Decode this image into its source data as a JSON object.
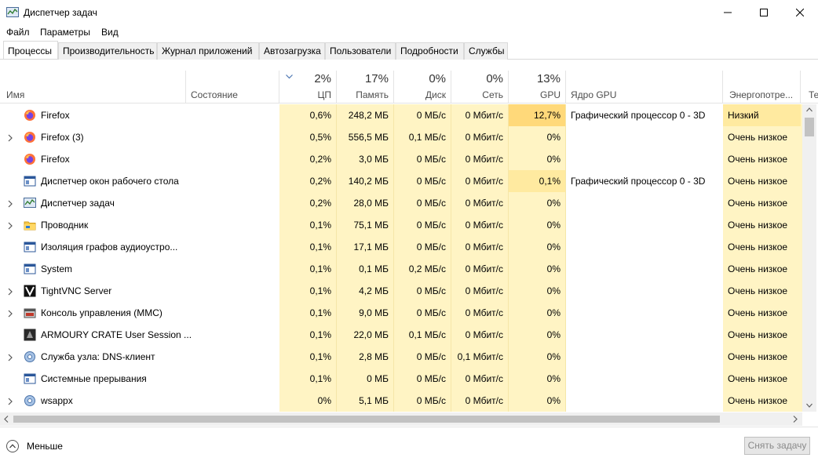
{
  "window": {
    "title": "Диспетчер задач"
  },
  "menu": [
    "Файл",
    "Параметры",
    "Вид"
  ],
  "tabs": [
    "Процессы",
    "Производительность",
    "Журнал приложений",
    "Автозагрузка",
    "Пользователи",
    "Подробности",
    "Службы"
  ],
  "columns": {
    "name": "Имя",
    "status": "Состояние",
    "cpu": {
      "label": "ЦП",
      "pct": "2%"
    },
    "mem": {
      "label": "Память",
      "pct": "17%"
    },
    "disk": {
      "label": "Диск",
      "pct": "0%"
    },
    "net": {
      "label": "Сеть",
      "pct": "0%"
    },
    "gpu": {
      "label": "GPU",
      "pct": "13%"
    },
    "gpu_engine": "Ядро GPU",
    "power": "Энергопотре...",
    "power_trend": "Те"
  },
  "rows": [
    {
      "expand": false,
      "icon": "firefox-icon",
      "name": "Firefox",
      "cpu": "0,6%",
      "mem": "248,2 МБ",
      "disk": "0 МБ/с",
      "net": "0 Мбит/с",
      "gpu": "12,7%",
      "engine": "Графический процессор 0 - 3D",
      "power": "Низкий"
    },
    {
      "expand": true,
      "icon": "firefox-icon",
      "name": "Firefox (3)",
      "cpu": "0,5%",
      "mem": "556,5 МБ",
      "disk": "0,1 МБ/с",
      "net": "0 Мбит/с",
      "gpu": "0%",
      "engine": "",
      "power": "Очень низкое"
    },
    {
      "expand": false,
      "icon": "firefox-icon",
      "name": "Firefox",
      "cpu": "0,2%",
      "mem": "3,0 МБ",
      "disk": "0 МБ/с",
      "net": "0 Мбит/с",
      "gpu": "0%",
      "engine": "",
      "power": "Очень низкое"
    },
    {
      "expand": false,
      "icon": "window-icon",
      "name": "Диспетчер окон рабочего стола",
      "cpu": "0,2%",
      "mem": "140,2 МБ",
      "disk": "0 МБ/с",
      "net": "0 Мбит/с",
      "gpu": "0,1%",
      "engine": "Графический процессор 0 - 3D",
      "power": "Очень низкое"
    },
    {
      "expand": true,
      "icon": "taskmgr-icon",
      "name": "Диспетчер задач",
      "cpu": "0,2%",
      "mem": "28,0 МБ",
      "disk": "0 МБ/с",
      "net": "0 Мбит/с",
      "gpu": "0%",
      "engine": "",
      "power": "Очень низкое"
    },
    {
      "expand": true,
      "icon": "folder-icon",
      "name": "Проводник",
      "cpu": "0,1%",
      "mem": "75,1 МБ",
      "disk": "0 МБ/с",
      "net": "0 Мбит/с",
      "gpu": "0%",
      "engine": "",
      "power": "Очень низкое"
    },
    {
      "expand": false,
      "icon": "window-icon",
      "name": "Изоляция графов аудиоустро...",
      "cpu": "0,1%",
      "mem": "17,1 МБ",
      "disk": "0 МБ/с",
      "net": "0 Мбит/с",
      "gpu": "0%",
      "engine": "",
      "power": "Очень низкое"
    },
    {
      "expand": false,
      "icon": "window-icon",
      "name": "System",
      "cpu": "0,1%",
      "mem": "0,1 МБ",
      "disk": "0,2 МБ/с",
      "net": "0 Мбит/с",
      "gpu": "0%",
      "engine": "",
      "power": "Очень низкое"
    },
    {
      "expand": true,
      "icon": "vnc-icon",
      "name": "TightVNC Server",
      "cpu": "0,1%",
      "mem": "4,2 МБ",
      "disk": "0 МБ/с",
      "net": "0 Мбит/с",
      "gpu": "0%",
      "engine": "",
      "power": "Очень низкое"
    },
    {
      "expand": true,
      "icon": "mmc-icon",
      "name": "Консоль управления (MMC)",
      "cpu": "0,1%",
      "mem": "9,0 МБ",
      "disk": "0 МБ/с",
      "net": "0 Мбит/с",
      "gpu": "0%",
      "engine": "",
      "power": "Очень низкое"
    },
    {
      "expand": false,
      "icon": "armoury-icon",
      "name": "ARMOURY CRATE User Session ...",
      "cpu": "0,1%",
      "mem": "22,0 МБ",
      "disk": "0,1 МБ/с",
      "net": "0 Мбит/с",
      "gpu": "0%",
      "engine": "",
      "power": "Очень низкое"
    },
    {
      "expand": true,
      "icon": "gear-icon",
      "name": "Служба узла: DNS-клиент",
      "cpu": "0,1%",
      "mem": "2,8 МБ",
      "disk": "0 МБ/с",
      "net": "0,1 Мбит/с",
      "gpu": "0%",
      "engine": "",
      "power": "Очень низкое"
    },
    {
      "expand": false,
      "icon": "window-icon",
      "name": "Системные прерывания",
      "cpu": "0,1%",
      "mem": "0 МБ",
      "disk": "0 МБ/с",
      "net": "0 Мбит/с",
      "gpu": "0%",
      "engine": "",
      "power": "Очень низкое"
    },
    {
      "expand": true,
      "icon": "gear-icon",
      "name": "wsappx",
      "cpu": "0%",
      "mem": "5,1 МБ",
      "disk": "0 МБ/с",
      "net": "0 Мбит/с",
      "gpu": "0%",
      "engine": "",
      "power": "Очень низкое"
    }
  ],
  "footer": {
    "less": "Меньше",
    "end_task": "Снять задачу"
  },
  "colors": {
    "heat_light": "#fff4c4",
    "heat_mid": "#ffeaa0",
    "heat_strong": "#ffd97a",
    "selected_row": "#ffffff"
  }
}
